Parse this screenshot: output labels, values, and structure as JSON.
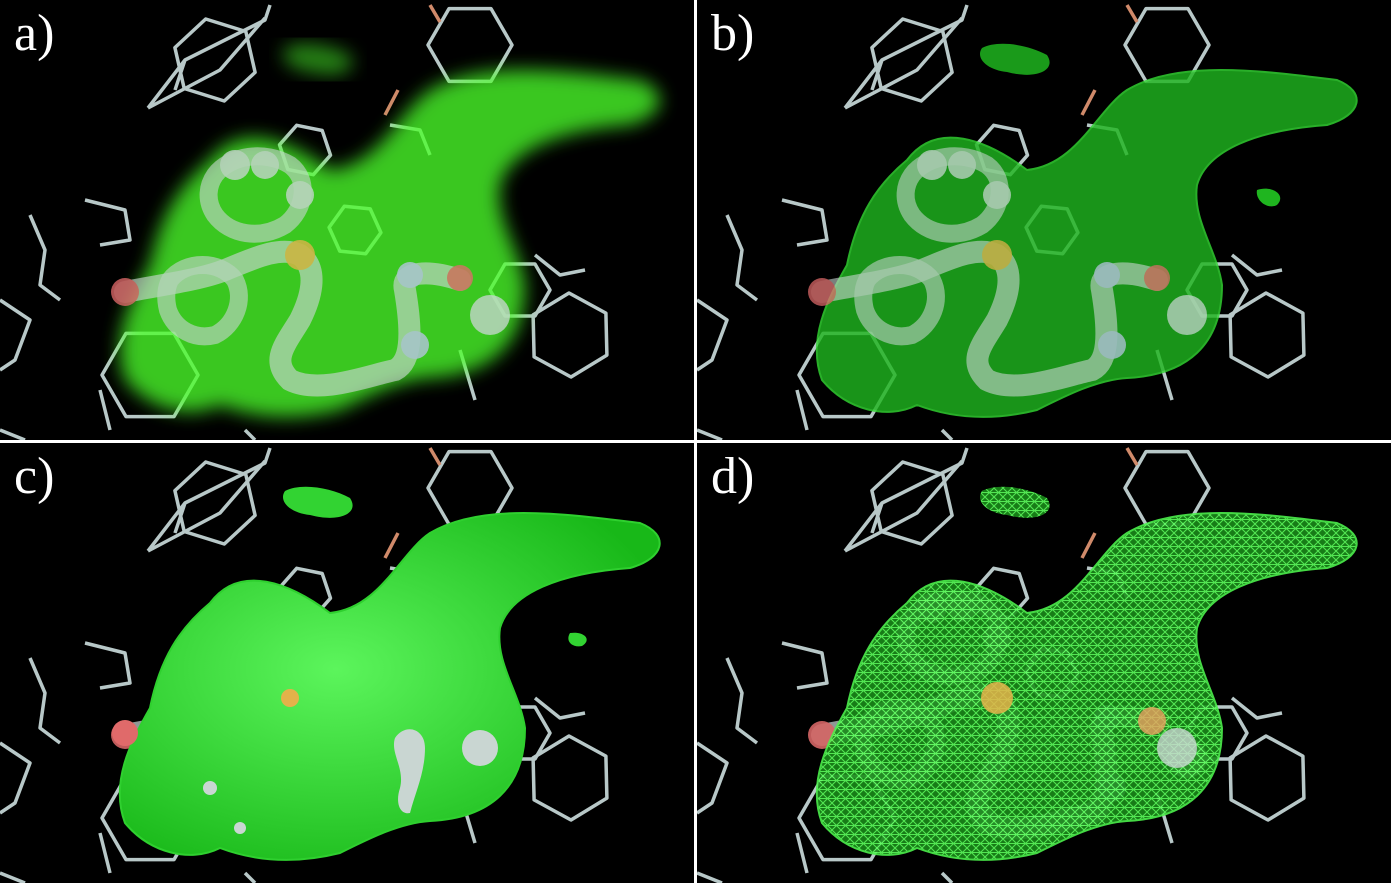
{
  "panels": [
    {
      "id": "a",
      "label": "a)",
      "style": "volumetric-glow"
    },
    {
      "id": "b",
      "label": "b)",
      "style": "translucent-surface"
    },
    {
      "id": "c",
      "label": "c)",
      "style": "opaque-surface"
    },
    {
      "id": "d",
      "label": "d)",
      "style": "wireframe-mesh"
    }
  ],
  "colors": {
    "background": "#000000",
    "divider": "#ffffff",
    "surface": "#33d633",
    "glow": "#4cff2a",
    "bonds": "#b8c8c8",
    "ligand": "#c9d6d2",
    "oxygen": "#e06a6a",
    "sulfur": "#e3b24a",
    "nitrogen": "#b9c4e6"
  }
}
